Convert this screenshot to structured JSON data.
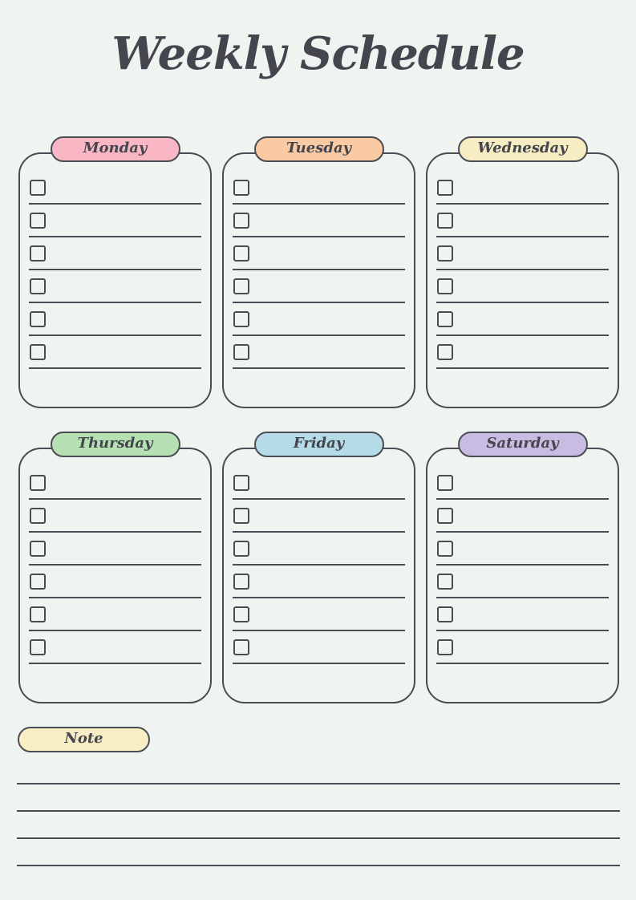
{
  "page": {
    "title": "Weekly Schedule",
    "background_color": "#eff4f1",
    "ink_color": "#4b4b53",
    "title_color": "#45454d"
  },
  "week": {
    "days": [
      {
        "label": "Monday",
        "color": "#f9b7c6",
        "task_rows": 6
      },
      {
        "label": "Tuesday",
        "color": "#f9caa3",
        "task_rows": 6
      },
      {
        "label": "Wednesday",
        "color": "#f6edc3",
        "task_rows": 6
      },
      {
        "label": "Thursday",
        "color": "#b6e1b3",
        "task_rows": 6
      },
      {
        "label": "Friday",
        "color": "#b5dbe7",
        "task_rows": 6
      },
      {
        "label": "Saturday",
        "color": "#c8bce3",
        "task_rows": 6
      }
    ],
    "all_checkboxes_unchecked": true
  },
  "note": {
    "label": "Note",
    "color": "#f7eec6",
    "line_count": 4
  }
}
